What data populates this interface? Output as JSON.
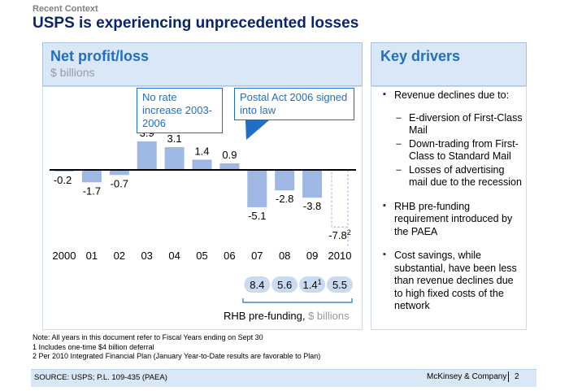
{
  "header": {
    "kicker": "Recent Context",
    "title": "USPS is experiencing unprecedented losses"
  },
  "left_panel": {
    "title": "Net profit/loss",
    "subtitle": "$ billions",
    "callouts": [
      "No rate increase 2003-2006",
      "Postal Act 2006 signed into law"
    ]
  },
  "chart_data": {
    "type": "bar",
    "title": "Net profit/loss",
    "ylabel": "$ billions",
    "categories": [
      "2000",
      "01",
      "02",
      "03",
      "04",
      "05",
      "06",
      "07",
      "08",
      "09",
      "2010"
    ],
    "values": [
      -0.2,
      -1.7,
      -0.7,
      3.9,
      3.1,
      1.4,
      0.9,
      -5.1,
      -2.8,
      -3.8,
      -7.8
    ],
    "value_labels": [
      "-0.2",
      "-1.7",
      "-0.7",
      "3.9",
      "3.1",
      "1.4",
      "0.9",
      "-5.1",
      "-2.8",
      "-3.8",
      "-7.8"
    ],
    "label_sup": {
      "10": "2"
    },
    "projected": [
      false,
      false,
      false,
      false,
      false,
      false,
      false,
      false,
      false,
      false,
      true
    ],
    "bar_color": "#9fb7e3",
    "rhb_prefunding": {
      "label": "RHB pre-funding, ",
      "unit": "$ billions",
      "categories": [
        "07",
        "08",
        "09",
        "2010"
      ],
      "values": [
        "8.4",
        "5.6",
        "1.4",
        "5.5"
      ],
      "sup": [
        "",
        "",
        "1",
        ""
      ]
    }
  },
  "right_panel": {
    "title": "Key drivers",
    "bullets": [
      {
        "text": "Revenue declines due to:",
        "sub": [
          "E-diversion of First-Class Mail",
          "Down-trading from First-Class to Standard Mail",
          "Losses of advertising mail due to the recession"
        ]
      },
      {
        "text": "RHB pre-funding requirement introduced by the PAEA",
        "sub": []
      },
      {
        "text": "Cost savings, while substantial, have been less than revenue declines due to high fixed costs of the network",
        "sub": []
      }
    ]
  },
  "notes": [
    "Note: All years in this document refer to Fiscal Years ending on Sept 30",
    "1 Includes one-time $4 billion deferral",
    "2 Per 2010 Integrated Financial Plan (January Year-to-Date results are favorable to Plan)"
  ],
  "footer": {
    "source": "SOURCE: USPS; P.L. 109-435 (PAEA)",
    "brand": "McKinsey & Company",
    "page": "2"
  },
  "colors": {
    "title_navy": "#08246b",
    "accent_blue": "#1f6fc5",
    "panel_fill": "#d9e7f6",
    "muted_gray": "#9a9a9a"
  }
}
